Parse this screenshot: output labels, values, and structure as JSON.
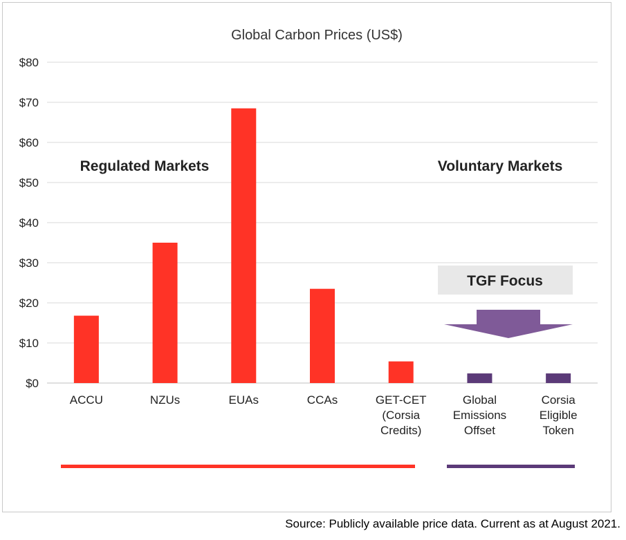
{
  "chart_data": {
    "type": "bar",
    "title": "Global Carbon Prices (US$)",
    "xlabel": "",
    "ylabel": "",
    "ylim": [
      0,
      80
    ],
    "yticks": [
      0,
      10,
      20,
      30,
      40,
      50,
      60,
      70,
      80
    ],
    "ytick_labels": [
      "$0",
      "$10",
      "$20",
      "$30",
      "$40",
      "$50",
      "$60",
      "$70",
      "$80"
    ],
    "grid": true,
    "categories": [
      [
        "ACCU"
      ],
      [
        "NZUs"
      ],
      [
        "EUAs"
      ],
      [
        "CCAs"
      ],
      [
        "GET-CET",
        "(Corsia",
        "Credits)"
      ],
      [
        "Global",
        "Emissions",
        "Offset"
      ],
      [
        "Corsia",
        "Eligible",
        "Token"
      ]
    ],
    "values": [
      16.8,
      35.0,
      68.5,
      23.5,
      5.4,
      2.4,
      2.4
    ],
    "group": [
      "regulated",
      "regulated",
      "regulated",
      "regulated",
      "regulated",
      "voluntary",
      "voluntary"
    ],
    "colors": {
      "regulated": "#ff3326",
      "voluntary": "#5b3a78",
      "arrow": "#7f5a98",
      "focus_bg": "#e8e8e8",
      "grid": "#d9d9d9",
      "axis_text": "#222222"
    },
    "annotations": {
      "regulated_label": "Regulated Markets",
      "voluntary_label": "Voluntary Markets",
      "focus_label": "TGF Focus"
    }
  },
  "source": "Source: Publicly available price data. Current as at August 2021."
}
